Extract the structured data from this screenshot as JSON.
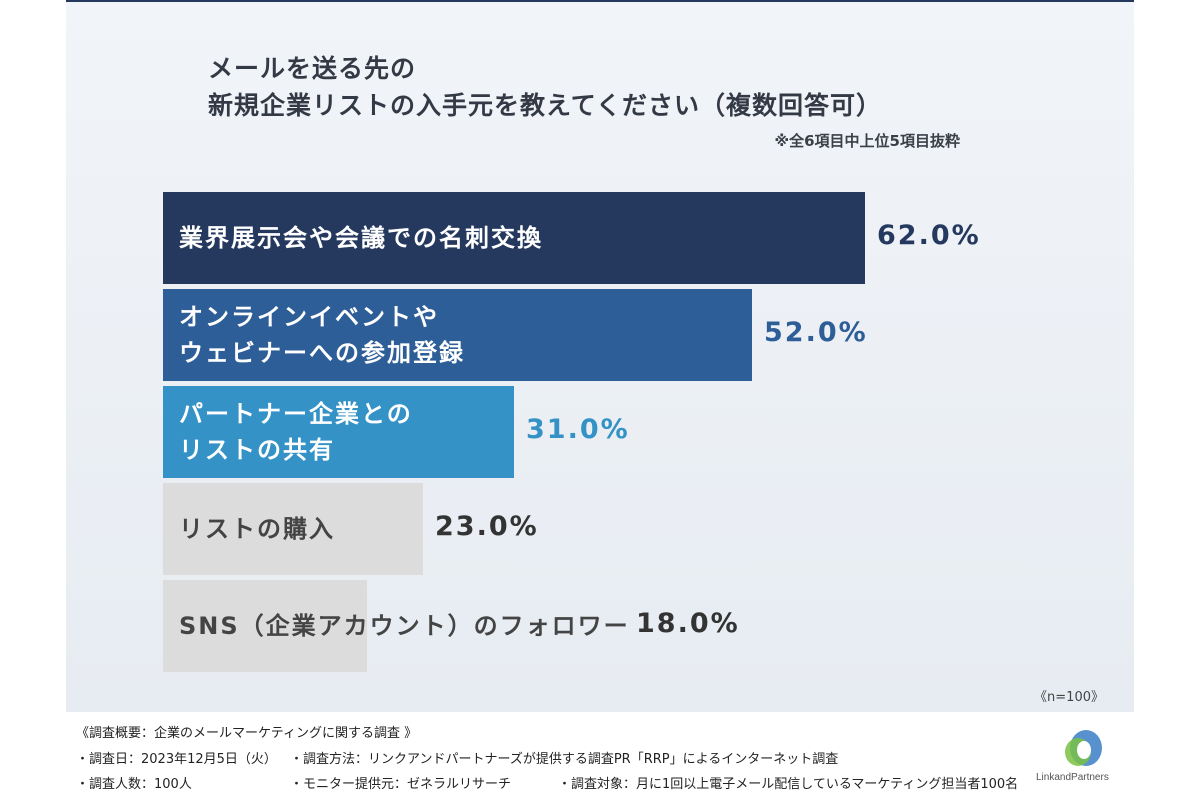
{
  "title_line1": "メールを送る先の",
  "title_line2": "新規企業リストの入手元を教えてください（複数回答可）",
  "note": "※全6項目中上位5項目抜粋",
  "n_label": "《n=100》",
  "colors": {
    "bar1": "#25395f",
    "bar2": "#2e5e97",
    "bar3": "#3492c6",
    "bar_gray": "#dcdcdc",
    "value_dark": "#25395f",
    "value_mid": "#2e5e97",
    "value_light": "#3492c6",
    "value_gray": "#333333"
  },
  "chart_data": {
    "type": "bar",
    "orientation": "horizontal",
    "title": "メールを送る先の 新規企業リストの入手元を教えてください（複数回答可）",
    "categories": [
      "業界展示会や会議での名刺交換",
      "オンラインイベントや ウェビナーへの参加登録",
      "パートナー企業との リストの共有",
      "リストの購入",
      "SNS（企業アカウント）のフォロワー"
    ],
    "values": [
      62.0,
      52.0,
      31.0,
      23.0,
      18.0
    ],
    "value_labels": [
      "62.0%",
      "52.0%",
      "31.0%",
      "23.0%",
      "18.0%"
    ],
    "bars": [
      {
        "label_lines": [
          "業界展示会や会議での名刺交換"
        ],
        "value": 62.0,
        "value_label": "62.0%"
      },
      {
        "label_lines": [
          "オンラインイベントや",
          "ウェビナーへの参加登録"
        ],
        "value": 52.0,
        "value_label": "52.0%"
      },
      {
        "label_lines": [
          "パートナー企業との",
          "リストの共有"
        ],
        "value": 31.0,
        "value_label": "31.0%"
      },
      {
        "label_lines": [
          "リストの購入"
        ],
        "value": 23.0,
        "value_label": "23.0%"
      },
      {
        "label_lines": [
          "SNS（企業アカウント）のフォロワー"
        ],
        "value": 18.0,
        "value_label": "18.0%"
      }
    ],
    "xlim": [
      0,
      100
    ],
    "grid": false
  },
  "footer": {
    "heading": "《調査概要：企業のメールマーケティングに関する調査 》",
    "date": "・調査日：2023年12月5日（火）",
    "method": "・調査方法：リンクアンドパートナーズが提供する調査PR「RRP」によるインターネット調査",
    "count": "・調査人数：100人",
    "monitor": "・モニター提供元：ゼネラルリサーチ",
    "target": "・調査対象：月に1回以上電子メール配信しているマーケティング担当者100名"
  },
  "logo_text": "LinkandPartners"
}
